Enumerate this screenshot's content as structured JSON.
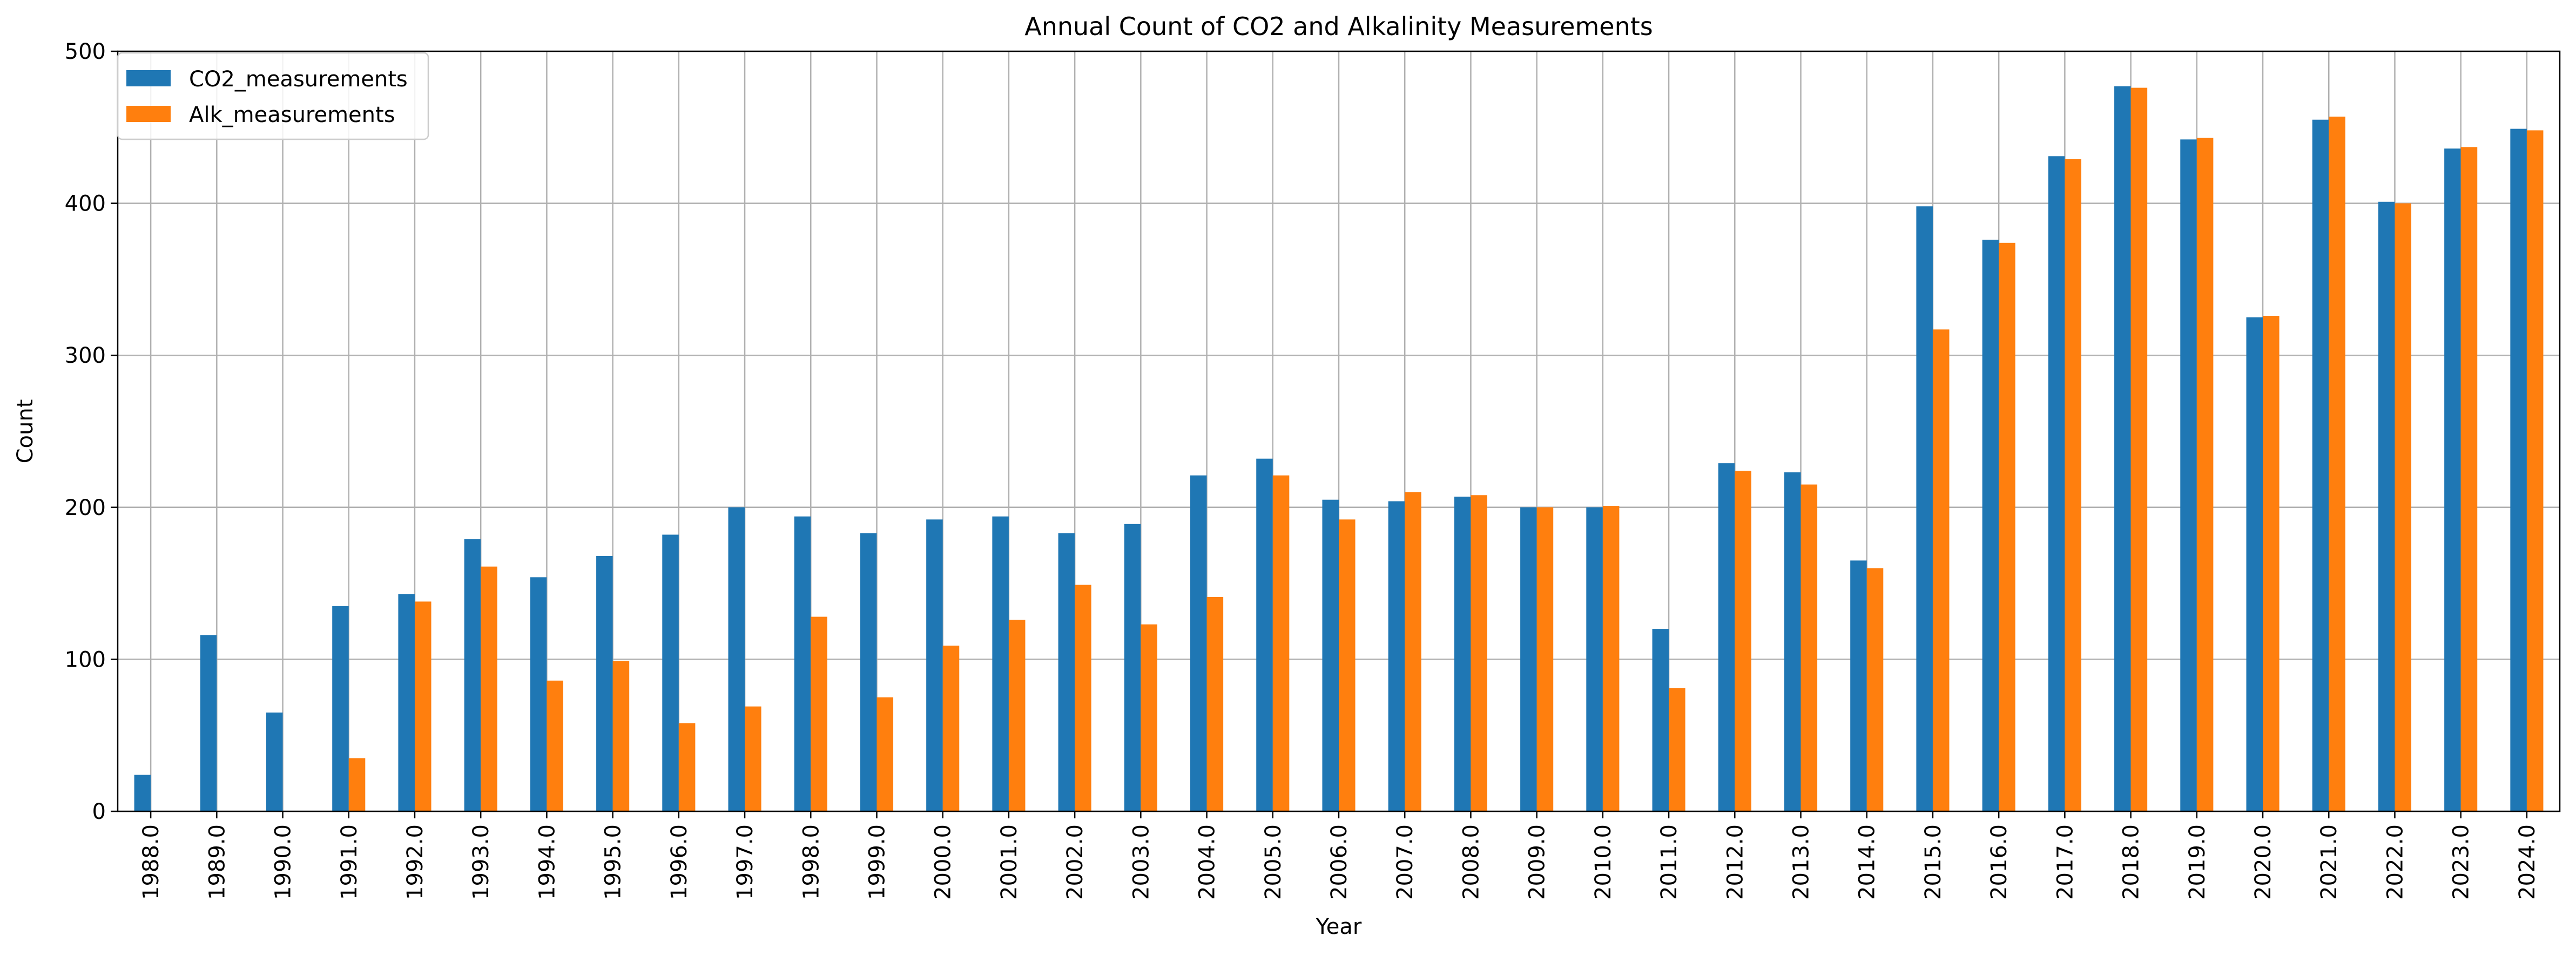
{
  "chart_data": {
    "type": "bar",
    "title": "Annual Count of CO2 and Alkalinity Measurements",
    "xlabel": "Year",
    "ylabel": "Count",
    "ylim": [
      0,
      500
    ],
    "yticks": [
      0,
      100,
      200,
      300,
      400,
      500
    ],
    "grid": true,
    "legend": "top-left",
    "categories": [
      "1988.0",
      "1989.0",
      "1990.0",
      "1991.0",
      "1992.0",
      "1993.0",
      "1994.0",
      "1995.0",
      "1996.0",
      "1997.0",
      "1998.0",
      "1999.0",
      "2000.0",
      "2001.0",
      "2002.0",
      "2003.0",
      "2004.0",
      "2005.0",
      "2006.0",
      "2007.0",
      "2008.0",
      "2009.0",
      "2010.0",
      "2011.0",
      "2012.0",
      "2013.0",
      "2014.0",
      "2015.0",
      "2016.0",
      "2017.0",
      "2018.0",
      "2019.0",
      "2020.0",
      "2021.0",
      "2022.0",
      "2023.0",
      "2024.0"
    ],
    "series": [
      {
        "name": "CO2_measurements",
        "color": "#1f77b4",
        "values": [
          24,
          116,
          65,
          135,
          143,
          179,
          154,
          168,
          182,
          200,
          194,
          183,
          192,
          194,
          183,
          189,
          221,
          232,
          205,
          204,
          207,
          200,
          200,
          120,
          229,
          223,
          165,
          398,
          376,
          431,
          477,
          442,
          325,
          455,
          401,
          436,
          449
        ]
      },
      {
        "name": "Alk_measurements",
        "color": "#ff7f0e",
        "values": [
          0,
          0,
          0,
          35,
          138,
          161,
          86,
          99,
          58,
          69,
          128,
          75,
          109,
          126,
          149,
          123,
          141,
          221,
          192,
          210,
          208,
          200,
          201,
          81,
          224,
          215,
          160,
          317,
          374,
          429,
          476,
          443,
          326,
          457,
          400,
          437,
          448
        ]
      }
    ]
  }
}
